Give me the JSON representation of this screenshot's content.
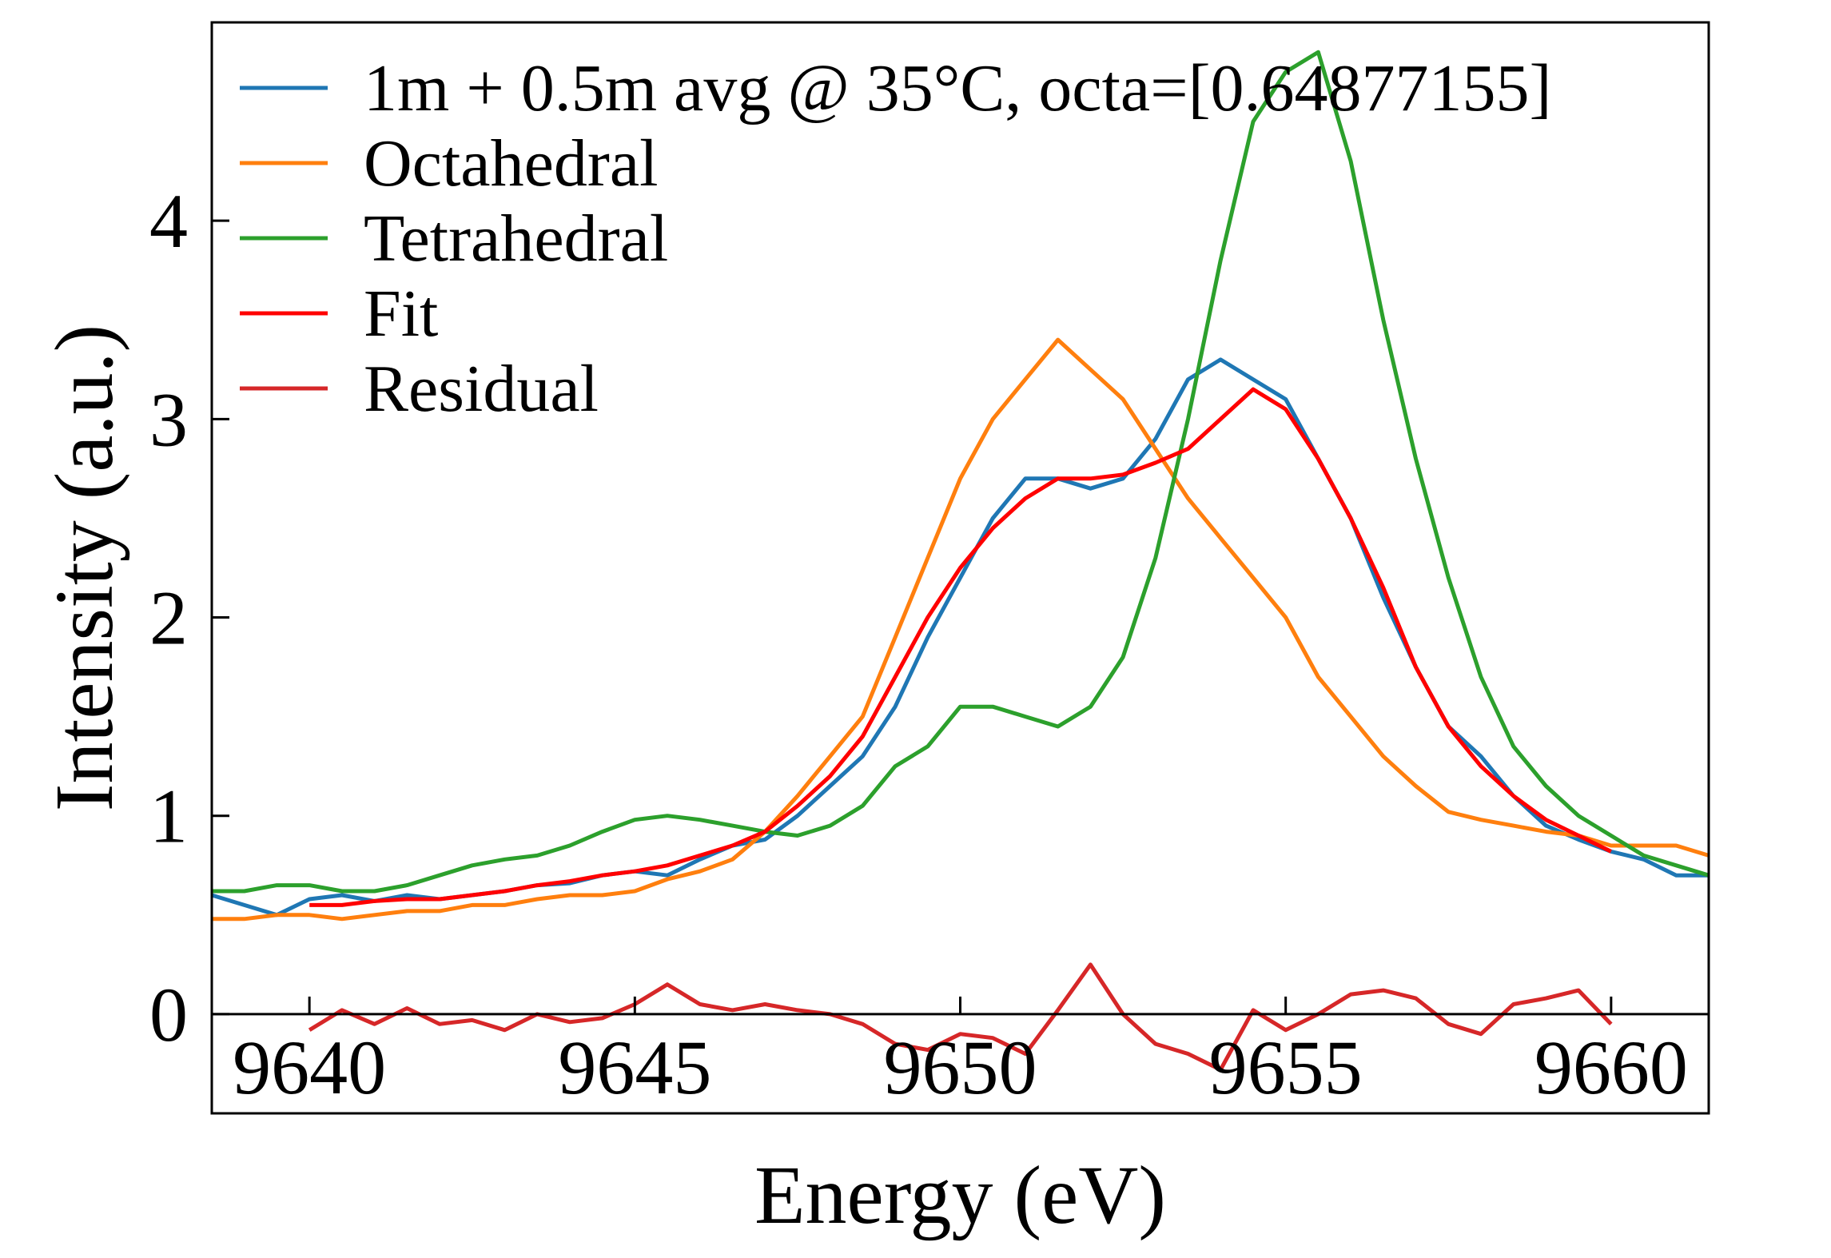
{
  "chart_data": {
    "type": "line",
    "xlabel": "Energy (eV)",
    "ylabel": "Intensity (a.u.)",
    "xlim": [
      9638.5,
      9661.5
    ],
    "ylim": [
      -0.5,
      5.0
    ],
    "xticks": [
      {
        "value": 9640,
        "label": "9640"
      },
      {
        "value": 9645,
        "label": "9645"
      },
      {
        "value": 9650,
        "label": "9650"
      },
      {
        "value": 9655,
        "label": "9655"
      },
      {
        "value": 9660,
        "label": "9660"
      }
    ],
    "yticks": [
      {
        "value": 0,
        "label": "0"
      },
      {
        "value": 1,
        "label": "1"
      },
      {
        "value": 2,
        "label": "2"
      },
      {
        "value": 3,
        "label": "3"
      },
      {
        "value": 4,
        "label": "4"
      }
    ],
    "legend_position": "upper-left",
    "grid": false,
    "series": [
      {
        "name": "1m + 0.5m avg @ 35°C, octa=[0.64877155]",
        "color": "#1f77b4",
        "points": [
          [
            9638.5,
            0.6
          ],
          [
            9639.0,
            0.55
          ],
          [
            9639.5,
            0.5
          ],
          [
            9640.0,
            0.58
          ],
          [
            9640.5,
            0.6
          ],
          [
            9641.0,
            0.57
          ],
          [
            9641.5,
            0.6
          ],
          [
            9642.0,
            0.58
          ],
          [
            9642.5,
            0.6
          ],
          [
            9643.0,
            0.62
          ],
          [
            9643.5,
            0.65
          ],
          [
            9644.0,
            0.66
          ],
          [
            9644.5,
            0.7
          ],
          [
            9645.0,
            0.72
          ],
          [
            9645.5,
            0.7
          ],
          [
            9646.0,
            0.78
          ],
          [
            9646.5,
            0.85
          ],
          [
            9647.0,
            0.88
          ],
          [
            9647.5,
            1.0
          ],
          [
            9648.0,
            1.15
          ],
          [
            9648.5,
            1.3
          ],
          [
            9649.0,
            1.55
          ],
          [
            9649.5,
            1.9
          ],
          [
            9650.0,
            2.2
          ],
          [
            9650.5,
            2.5
          ],
          [
            9651.0,
            2.7
          ],
          [
            9651.5,
            2.7
          ],
          [
            9652.0,
            2.65
          ],
          [
            9652.5,
            2.7
          ],
          [
            9653.0,
            2.9
          ],
          [
            9653.5,
            3.2
          ],
          [
            9654.0,
            3.3
          ],
          [
            9654.5,
            3.2
          ],
          [
            9655.0,
            3.1
          ],
          [
            9655.5,
            2.8
          ],
          [
            9656.0,
            2.5
          ],
          [
            9656.5,
            2.1
          ],
          [
            9657.0,
            1.75
          ],
          [
            9657.5,
            1.45
          ],
          [
            9658.0,
            1.3
          ],
          [
            9658.5,
            1.1
          ],
          [
            9659.0,
            0.95
          ],
          [
            9659.5,
            0.88
          ],
          [
            9660.0,
            0.82
          ],
          [
            9660.5,
            0.78
          ],
          [
            9661.0,
            0.7
          ],
          [
            9661.5,
            0.7
          ]
        ]
      },
      {
        "name": "Octahedral",
        "color": "#ff7f0e",
        "points": [
          [
            9638.5,
            0.48
          ],
          [
            9639.0,
            0.48
          ],
          [
            9639.5,
            0.5
          ],
          [
            9640.0,
            0.5
          ],
          [
            9640.5,
            0.48
          ],
          [
            9641.0,
            0.5
          ],
          [
            9641.5,
            0.52
          ],
          [
            9642.0,
            0.52
          ],
          [
            9642.5,
            0.55
          ],
          [
            9643.0,
            0.55
          ],
          [
            9643.5,
            0.58
          ],
          [
            9644.0,
            0.6
          ],
          [
            9644.5,
            0.6
          ],
          [
            9645.0,
            0.62
          ],
          [
            9645.5,
            0.68
          ],
          [
            9646.0,
            0.72
          ],
          [
            9646.5,
            0.78
          ],
          [
            9647.0,
            0.92
          ],
          [
            9647.5,
            1.1
          ],
          [
            9648.0,
            1.3
          ],
          [
            9648.5,
            1.5
          ],
          [
            9649.0,
            1.9
          ],
          [
            9649.5,
            2.3
          ],
          [
            9650.0,
            2.7
          ],
          [
            9650.5,
            3.0
          ],
          [
            9651.0,
            3.2
          ],
          [
            9651.5,
            3.4
          ],
          [
            9652.0,
            3.25
          ],
          [
            9652.5,
            3.1
          ],
          [
            9653.0,
            2.85
          ],
          [
            9653.5,
            2.6
          ],
          [
            9654.0,
            2.4
          ],
          [
            9654.5,
            2.2
          ],
          [
            9655.0,
            2.0
          ],
          [
            9655.5,
            1.7
          ],
          [
            9656.0,
            1.5
          ],
          [
            9656.5,
            1.3
          ],
          [
            9657.0,
            1.15
          ],
          [
            9657.5,
            1.02
          ],
          [
            9658.0,
            0.98
          ],
          [
            9658.5,
            0.95
          ],
          [
            9659.0,
            0.92
          ],
          [
            9659.5,
            0.9
          ],
          [
            9660.0,
            0.85
          ],
          [
            9660.5,
            0.85
          ],
          [
            9661.0,
            0.85
          ],
          [
            9661.5,
            0.8
          ]
        ]
      },
      {
        "name": "Tetrahedral",
        "color": "#2ca02c",
        "points": [
          [
            9638.5,
            0.62
          ],
          [
            9639.0,
            0.62
          ],
          [
            9639.5,
            0.65
          ],
          [
            9640.0,
            0.65
          ],
          [
            9640.5,
            0.62
          ],
          [
            9641.0,
            0.62
          ],
          [
            9641.5,
            0.65
          ],
          [
            9642.0,
            0.7
          ],
          [
            9642.5,
            0.75
          ],
          [
            9643.0,
            0.78
          ],
          [
            9643.5,
            0.8
          ],
          [
            9644.0,
            0.85
          ],
          [
            9644.5,
            0.92
          ],
          [
            9645.0,
            0.98
          ],
          [
            9645.5,
            1.0
          ],
          [
            9646.0,
            0.98
          ],
          [
            9646.5,
            0.95
          ],
          [
            9647.0,
            0.92
          ],
          [
            9647.5,
            0.9
          ],
          [
            9648.0,
            0.95
          ],
          [
            9648.5,
            1.05
          ],
          [
            9649.0,
            1.25
          ],
          [
            9649.5,
            1.35
          ],
          [
            9650.0,
            1.55
          ],
          [
            9650.5,
            1.55
          ],
          [
            9651.0,
            1.5
          ],
          [
            9651.5,
            1.45
          ],
          [
            9652.0,
            1.55
          ],
          [
            9652.5,
            1.8
          ],
          [
            9653.0,
            2.3
          ],
          [
            9653.5,
            3.0
          ],
          [
            9654.0,
            3.8
          ],
          [
            9654.5,
            4.5
          ],
          [
            9655.0,
            4.75
          ],
          [
            9655.5,
            4.85
          ],
          [
            9656.0,
            4.3
          ],
          [
            9656.5,
            3.5
          ],
          [
            9657.0,
            2.8
          ],
          [
            9657.5,
            2.2
          ],
          [
            9658.0,
            1.7
          ],
          [
            9658.5,
            1.35
          ],
          [
            9659.0,
            1.15
          ],
          [
            9659.5,
            1.0
          ],
          [
            9660.0,
            0.9
          ],
          [
            9660.5,
            0.8
          ],
          [
            9661.0,
            0.75
          ],
          [
            9661.5,
            0.7
          ]
        ]
      },
      {
        "name": "Fit",
        "color": "#ff0000",
        "points": [
          [
            9640.0,
            0.55
          ],
          [
            9640.5,
            0.55
          ],
          [
            9641.0,
            0.57
          ],
          [
            9641.5,
            0.58
          ],
          [
            9642.0,
            0.58
          ],
          [
            9642.5,
            0.6
          ],
          [
            9643.0,
            0.62
          ],
          [
            9643.5,
            0.65
          ],
          [
            9644.0,
            0.67
          ],
          [
            9644.5,
            0.7
          ],
          [
            9645.0,
            0.72
          ],
          [
            9645.5,
            0.75
          ],
          [
            9646.0,
            0.8
          ],
          [
            9646.5,
            0.85
          ],
          [
            9647.0,
            0.92
          ],
          [
            9647.5,
            1.05
          ],
          [
            9648.0,
            1.2
          ],
          [
            9648.5,
            1.4
          ],
          [
            9649.0,
            1.7
          ],
          [
            9649.5,
            2.0
          ],
          [
            9650.0,
            2.25
          ],
          [
            9650.5,
            2.45
          ],
          [
            9651.0,
            2.6
          ],
          [
            9651.5,
            2.7
          ],
          [
            9652.0,
            2.7
          ],
          [
            9652.5,
            2.72
          ],
          [
            9653.0,
            2.78
          ],
          [
            9653.5,
            2.85
          ],
          [
            9654.0,
            3.0
          ],
          [
            9654.5,
            3.15
          ],
          [
            9655.0,
            3.05
          ],
          [
            9655.5,
            2.8
          ],
          [
            9656.0,
            2.5
          ],
          [
            9656.5,
            2.15
          ],
          [
            9657.0,
            1.75
          ],
          [
            9657.5,
            1.45
          ],
          [
            9658.0,
            1.25
          ],
          [
            9658.5,
            1.1
          ],
          [
            9659.0,
            0.98
          ],
          [
            9659.5,
            0.9
          ],
          [
            9660.0,
            0.82
          ]
        ]
      },
      {
        "name": "Residual",
        "color": "#d62728",
        "points": [
          [
            9640.0,
            -0.08
          ],
          [
            9640.5,
            0.02
          ],
          [
            9641.0,
            -0.05
          ],
          [
            9641.5,
            0.03
          ],
          [
            9642.0,
            -0.05
          ],
          [
            9642.5,
            -0.03
          ],
          [
            9643.0,
            -0.08
          ],
          [
            9643.5,
            0.0
          ],
          [
            9644.0,
            -0.04
          ],
          [
            9644.5,
            -0.02
          ],
          [
            9645.0,
            0.05
          ],
          [
            9645.5,
            0.15
          ],
          [
            9646.0,
            0.05
          ],
          [
            9646.5,
            0.02
          ],
          [
            9647.0,
            0.05
          ],
          [
            9647.5,
            0.02
          ],
          [
            9648.0,
            0.0
          ],
          [
            9648.5,
            -0.05
          ],
          [
            9649.0,
            -0.15
          ],
          [
            9649.5,
            -0.18
          ],
          [
            9650.0,
            -0.1
          ],
          [
            9650.5,
            -0.12
          ],
          [
            9651.0,
            -0.2
          ],
          [
            9651.5,
            0.02
          ],
          [
            9652.0,
            0.25
          ],
          [
            9652.5,
            0.0
          ],
          [
            9653.0,
            -0.15
          ],
          [
            9653.5,
            -0.2
          ],
          [
            9654.0,
            -0.28
          ],
          [
            9654.5,
            0.02
          ],
          [
            9655.0,
            -0.08
          ],
          [
            9655.5,
            0.0
          ],
          [
            9656.0,
            0.1
          ],
          [
            9656.5,
            0.12
          ],
          [
            9657.0,
            0.08
          ],
          [
            9657.5,
            -0.05
          ],
          [
            9658.0,
            -0.1
          ],
          [
            9658.5,
            0.05
          ],
          [
            9659.0,
            0.08
          ],
          [
            9659.5,
            0.12
          ],
          [
            9660.0,
            -0.05
          ]
        ]
      }
    ]
  }
}
